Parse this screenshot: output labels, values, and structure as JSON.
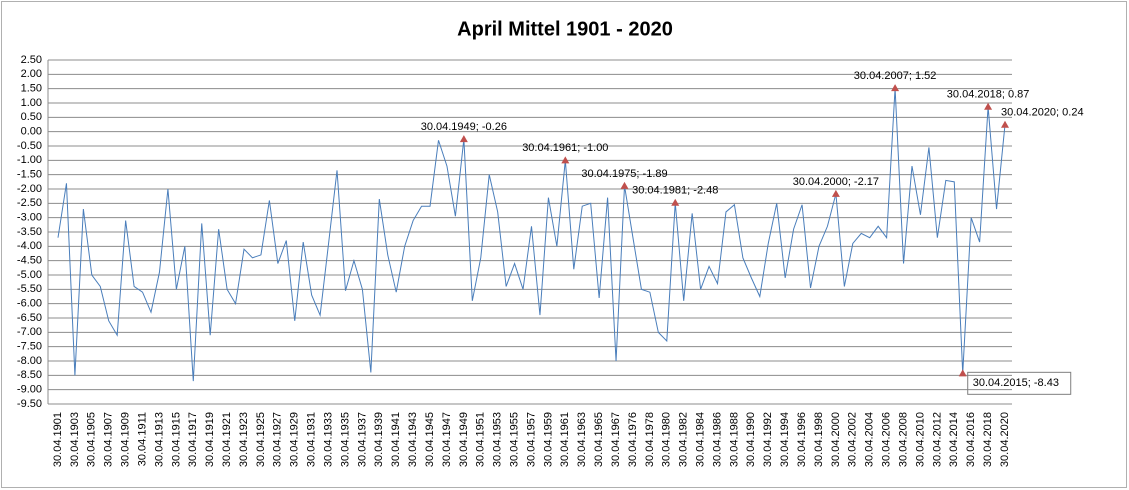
{
  "chart_data": {
    "type": "line",
    "title": "April Mittel 1901 - 2020",
    "categories": [
      "30.04.1901",
      null,
      "30.04.1903",
      null,
      "30.04.1905",
      null,
      "30.04.1907",
      null,
      "30.04.1909",
      null,
      "30.04.1911",
      null,
      "30.04.1913",
      null,
      "30.04.1915",
      null,
      "30.04.1917",
      null,
      "30.04.1919",
      null,
      "30.04.1921",
      null,
      "30.04.1923",
      null,
      "30.04.1925",
      null,
      "30.04.1927",
      null,
      "30.04.1929",
      null,
      "30.04.1931",
      null,
      "30.04.1933",
      null,
      "30.04.1935",
      null,
      "30.04.1937",
      null,
      "30.04.1939",
      null,
      "30.04.1941",
      null,
      "30.04.1943",
      null,
      "30.04.1945",
      null,
      "30.04.1947",
      null,
      "30.04.1949",
      null,
      "30.04.1951",
      null,
      "30.04.1953",
      null,
      "30.04.1955",
      null,
      "30.04.1957",
      null,
      "30.04.1959",
      null,
      "30.04.1961",
      null,
      "30.04.1963",
      null,
      "30.04.1965",
      null,
      "30.04.1967",
      null,
      "30.04.1976",
      null,
      "30.04.1978",
      null,
      "30.04.1980",
      null,
      "30.04.1982",
      null,
      "30.04.1984",
      null,
      "30.04.1986",
      null,
      "30.04.1988",
      null,
      "30.04.1990",
      null,
      "30.04.1992",
      null,
      "30.04.1994",
      null,
      "30.04.1996",
      null,
      "30.04.1998",
      null,
      "30.04.2000",
      null,
      "30.04.2002",
      null,
      "30.04.2004",
      null,
      "30.04.2006",
      null,
      "30.04.2008",
      null,
      "30.04.2010",
      null,
      "30.04.2012",
      null,
      "30.04.2014",
      null,
      "30.04.2016",
      null,
      "30.04.2018",
      null,
      "30.04.2020"
    ],
    "series": [
      {
        "color": "#4a7ebb",
        "marker_color": "#c0504d",
        "values": [
          -3.7,
          -1.8,
          -8.5,
          -2.7,
          -5.0,
          -5.4,
          -6.6,
          -7.1,
          -3.1,
          -5.4,
          -5.6,
          -6.3,
          -4.9,
          -2.0,
          -5.5,
          -4.0,
          -8.7,
          -3.2,
          -7.1,
          -3.4,
          -5.5,
          -6.0,
          -4.1,
          -4.4,
          -4.3,
          -2.4,
          -4.6,
          -3.8,
          -6.6,
          -3.85,
          -5.7,
          -6.4,
          -3.9,
          -1.35,
          -5.55,
          -4.5,
          -5.5,
          -8.4,
          -2.35,
          -4.3,
          -5.6,
          -4.0,
          -3.1,
          -2.6,
          -2.6,
          -0.3,
          -1.2,
          -2.95,
          -0.26,
          -5.9,
          -4.4,
          -1.5,
          -2.8,
          -5.4,
          -4.6,
          -5.5,
          -3.3,
          -6.4,
          -2.3,
          -4.0,
          -1.0,
          -4.8,
          -2.6,
          -2.5,
          -5.8,
          -2.3,
          -8.0,
          -1.89,
          -3.7,
          -5.5,
          -5.6,
          -7.0,
          -7.3,
          -2.48,
          -5.9,
          -2.85,
          -5.5,
          -4.7,
          -5.3,
          -2.8,
          -2.55,
          -4.4,
          -5.1,
          -5.75,
          -3.9,
          -2.5,
          -5.1,
          -3.4,
          -2.55,
          -5.45,
          -4.0,
          -3.3,
          -2.17,
          -5.4,
          -3.9,
          -3.55,
          -3.7,
          -3.3,
          -3.7,
          1.52,
          -4.6,
          -1.2,
          -2.9,
          -0.55,
          -3.7,
          -1.7,
          -1.75,
          -8.43,
          -3.0,
          -3.85,
          0.87,
          -2.7,
          0.24
        ],
        "value_labels": [
          null,
          null,
          null,
          null,
          null,
          null,
          null,
          null,
          null,
          null,
          null,
          null,
          null,
          null,
          null,
          null,
          null,
          null,
          null,
          null,
          null,
          null,
          null,
          null,
          null,
          null,
          null,
          null,
          null,
          null,
          null,
          null,
          null,
          null,
          null,
          null,
          null,
          null,
          null,
          null,
          null,
          null,
          null,
          null,
          null,
          null,
          null,
          null,
          "30.04.1949; -0.26",
          null,
          null,
          null,
          null,
          null,
          null,
          null,
          null,
          null,
          null,
          null,
          "30.04.1961; -1.00",
          null,
          null,
          null,
          null,
          null,
          null,
          "30.04.1975; -1.89",
          null,
          null,
          null,
          null,
          null,
          "30.04.1981; -2.48",
          null,
          null,
          null,
          null,
          null,
          null,
          null,
          null,
          null,
          null,
          null,
          null,
          null,
          null,
          null,
          null,
          null,
          null,
          "30.04.2000; -2.17",
          null,
          null,
          null,
          null,
          null,
          null,
          "30.04.2007; 1.52",
          null,
          null,
          null,
          null,
          null,
          null,
          null,
          "30.04.2015; -8.43",
          null,
          null,
          "30.04.2018; 0.87",
          null,
          "30.04.2020; 0.24"
        ]
      }
    ],
    "ylim": [
      -9.5,
      2.5
    ],
    "yticks": [
      {
        "value": 2.5,
        "label": "2.50"
      },
      {
        "value": 2,
        "label": "2.00"
      },
      {
        "value": 1.5,
        "label": "1.50"
      },
      {
        "value": 1,
        "label": "1.00"
      },
      {
        "value": 0.5,
        "label": "0.50"
      },
      {
        "value": 0,
        "label": "0.00"
      },
      {
        "value": -0.5,
        "label": "-0.50"
      },
      {
        "value": -1,
        "label": "-1.00"
      },
      {
        "value": -1.5,
        "label": "-1.50"
      },
      {
        "value": -2,
        "label": "-2.00"
      },
      {
        "value": -2.5,
        "label": "-2.50"
      },
      {
        "value": -3,
        "label": "-3.00"
      },
      {
        "value": -3.5,
        "label": "-3.50"
      },
      {
        "value": -4,
        "label": "-4.00"
      },
      {
        "value": -4.5,
        "label": "-4.50"
      },
      {
        "value": -5,
        "label": "-5.00"
      },
      {
        "value": -5.5,
        "label": "-5.50"
      },
      {
        "value": -6,
        "label": "-6.00"
      },
      {
        "value": -6.5,
        "label": "-6.50"
      },
      {
        "value": -7,
        "label": "-7.00"
      },
      {
        "value": -7.5,
        "label": "-7.50"
      },
      {
        "value": -8,
        "label": "-8.00"
      },
      {
        "value": -8.5,
        "label": "-8.50"
      },
      {
        "value": -9,
        "label": "-9.00"
      },
      {
        "value": -9.5,
        "label": "-9.50"
      }
    ],
    "grid": true
  }
}
